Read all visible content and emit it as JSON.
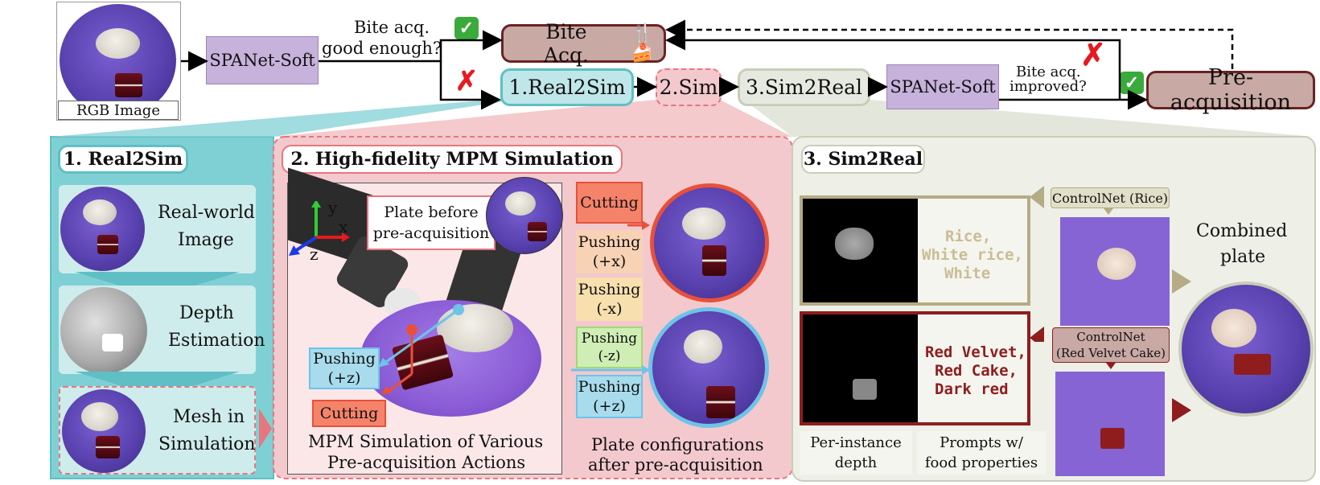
{
  "top": {
    "rgb_caption": "RGB Image",
    "spanet1": "SPANet-Soft",
    "question1_line1": "Bite acq.",
    "question1_line2": "good enough?",
    "bite_acq": "Bite Acq.",
    "real2sim": "1.Real2Sim",
    "sim": "2.Sim",
    "sim2real": "3.Sim2Real",
    "spanet2": "SPANet-Soft",
    "question2_line1": "Bite acq.",
    "question2_line2": "improved?",
    "preacq": "Pre-acquisition",
    "check_glyph": "✓",
    "cross_glyph": "✗",
    "utensil_glyph": "🍴🍰"
  },
  "panel1": {
    "title": "1. Real2Sim",
    "item1_line1": "Real-world",
    "item1_line2": "Image",
    "item2_line1": "Depth",
    "item2_line2": "Estimation",
    "item3_line1": "Mesh in",
    "item3_line2": "Simulation"
  },
  "panel2": {
    "title": "2. High-fidelity MPM Simulation",
    "plate_before_line1": "Plate before",
    "plate_before_line2": "pre-acquisition",
    "axis_y": "y",
    "axis_x": "x",
    "axis_z": "z",
    "pushing_label": "Pushing",
    "pushing_plus_z": "(+z)",
    "cutting_label": "Cutting",
    "caption_line1": "MPM Simulation of Various",
    "caption_line2": "Pre-acquisition Actions",
    "actions": [
      {
        "label": "Cutting",
        "sign": ""
      },
      {
        "label": "Pushing",
        "sign": "(+x)"
      },
      {
        "label": "Pushing",
        "sign": "(-x)"
      },
      {
        "label": "Pushing",
        "sign": "(-z)"
      },
      {
        "label": "Pushing",
        "sign": "(+z)"
      }
    ],
    "configs_line1": "Plate configurations",
    "configs_line2": "after pre-acquisition"
  },
  "panel3": {
    "title": "3. Sim2Real",
    "prompt1_line1": "Rice,",
    "prompt1_line2": "White rice,",
    "prompt1_line3": "White",
    "prompt2_line1": "Red Velvet,",
    "prompt2_line2": "Red Cake,",
    "prompt2_line3": "Dark red",
    "controlnet1": "ControlNet (Rice)",
    "controlnet2_line1": "ControlNet",
    "controlnet2_line2": "(Red Velvet Cake)",
    "combined_line1": "Combined",
    "combined_line2": "plate",
    "depth_caption_line1": "Per-instance",
    "depth_caption_line2": "depth",
    "prompts_caption_line1": "Prompts w/",
    "prompts_caption_line2": "food properties"
  },
  "colors": {
    "teal": "#5fbfc4",
    "pink": "#f1c9cc",
    "sage": "#e6e9df",
    "purple_box": "#c7b2dc",
    "bite_box": "#c9a9a4",
    "rice_text": "#c9bd95",
    "cake_text": "#8f1d1d"
  }
}
